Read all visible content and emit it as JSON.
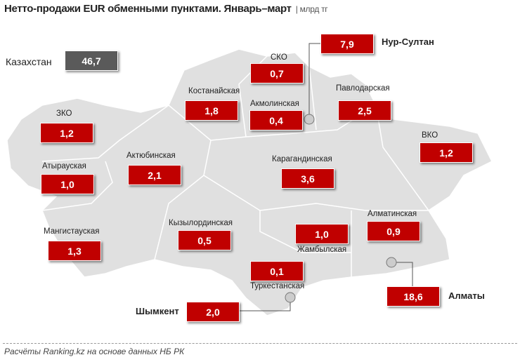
{
  "title": "Нетто-продажи EUR обменными пунктами. Январь–март",
  "unit": "млрд тг",
  "total": {
    "label": "Казахстан",
    "value": "46,7",
    "color": "#5a5a5a"
  },
  "accent_color": "#c00000",
  "regions": [
    {
      "name": "Нур-Султан",
      "value": "7,9"
    },
    {
      "name": "СКО",
      "value": "0,7"
    },
    {
      "name": "Костанайская",
      "value": "1,8"
    },
    {
      "name": "Акмолинская",
      "value": "0,4"
    },
    {
      "name": "Павлодарская",
      "value": "2,5"
    },
    {
      "name": "ЗКО",
      "value": "1,2"
    },
    {
      "name": "ВКО",
      "value": "1,2"
    },
    {
      "name": "Актюбинская",
      "value": "2,1"
    },
    {
      "name": "Карагандинская",
      "value": "3,6"
    },
    {
      "name": "Атырауская",
      "value": "1,0"
    },
    {
      "name": "Алматинская",
      "value": "0,9"
    },
    {
      "name": "Мангистауская",
      "value": "1,3"
    },
    {
      "name": "Кызылординская",
      "value": "0,5"
    },
    {
      "name": "Жамбылская",
      "value": "1,0"
    },
    {
      "name": "Туркестанская",
      "value": "0,1"
    },
    {
      "name": "Шымкент",
      "value": "2,0"
    },
    {
      "name": "Алматы",
      "value": "18,6"
    }
  ],
  "source": "Расчёты Ranking.kz на основе данных НБ РК"
}
